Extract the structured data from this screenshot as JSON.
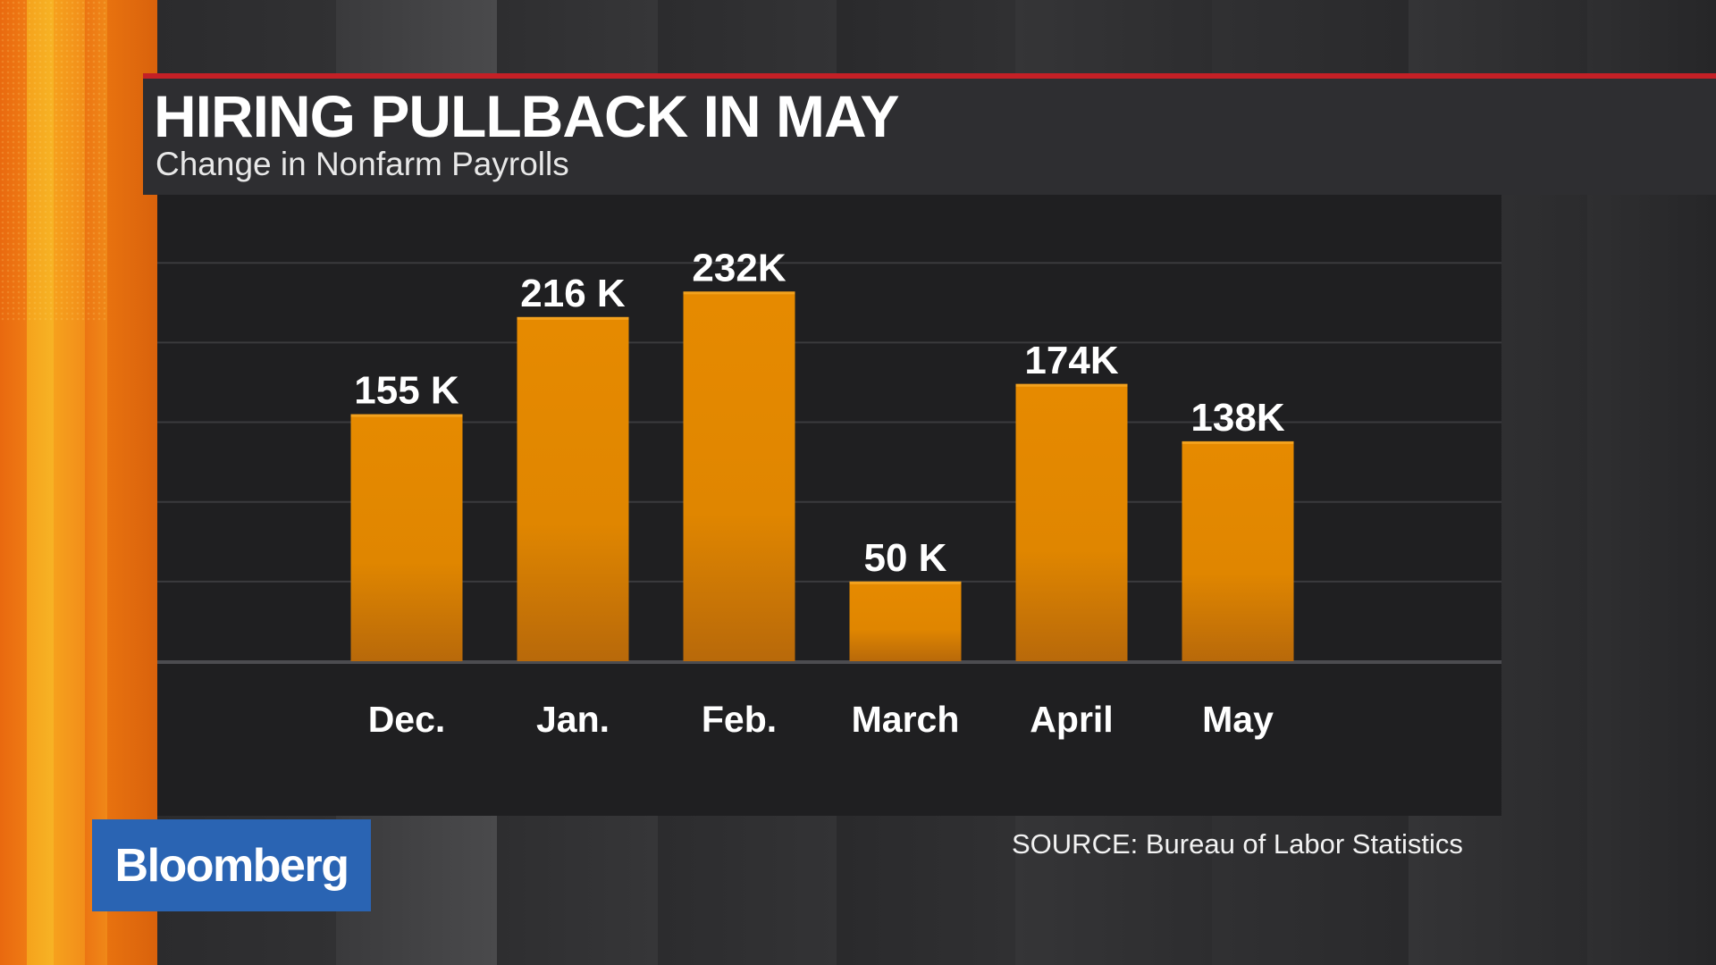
{
  "title": "HIRING PULLBACK IN MAY",
  "subtitle": "Change in Nonfarm Payrolls",
  "source": "SOURCE: Bureau of Labor Statistics",
  "logo_text": "Bloomberg",
  "colors": {
    "bar": "#e68a00",
    "bar_bottom": "#b8690a",
    "accent": "#c42026",
    "panel": "#1f1f21",
    "logo": "#2a64b3"
  },
  "chart_data": {
    "type": "bar",
    "title": "HIRING PULLBACK IN MAY",
    "subtitle": "Change in Nonfarm Payrolls",
    "categories": [
      "Dec.",
      "Jan.",
      "Feb.",
      "March",
      "April",
      "May"
    ],
    "values": [
      155,
      216,
      232,
      50,
      174,
      138
    ],
    "data_labels": [
      "155 K",
      "216 K",
      "232K",
      "50 K",
      "174K",
      "138K"
    ],
    "units": "thousands",
    "ylim": [
      0,
      300
    ],
    "grid": true,
    "legend": "none"
  }
}
